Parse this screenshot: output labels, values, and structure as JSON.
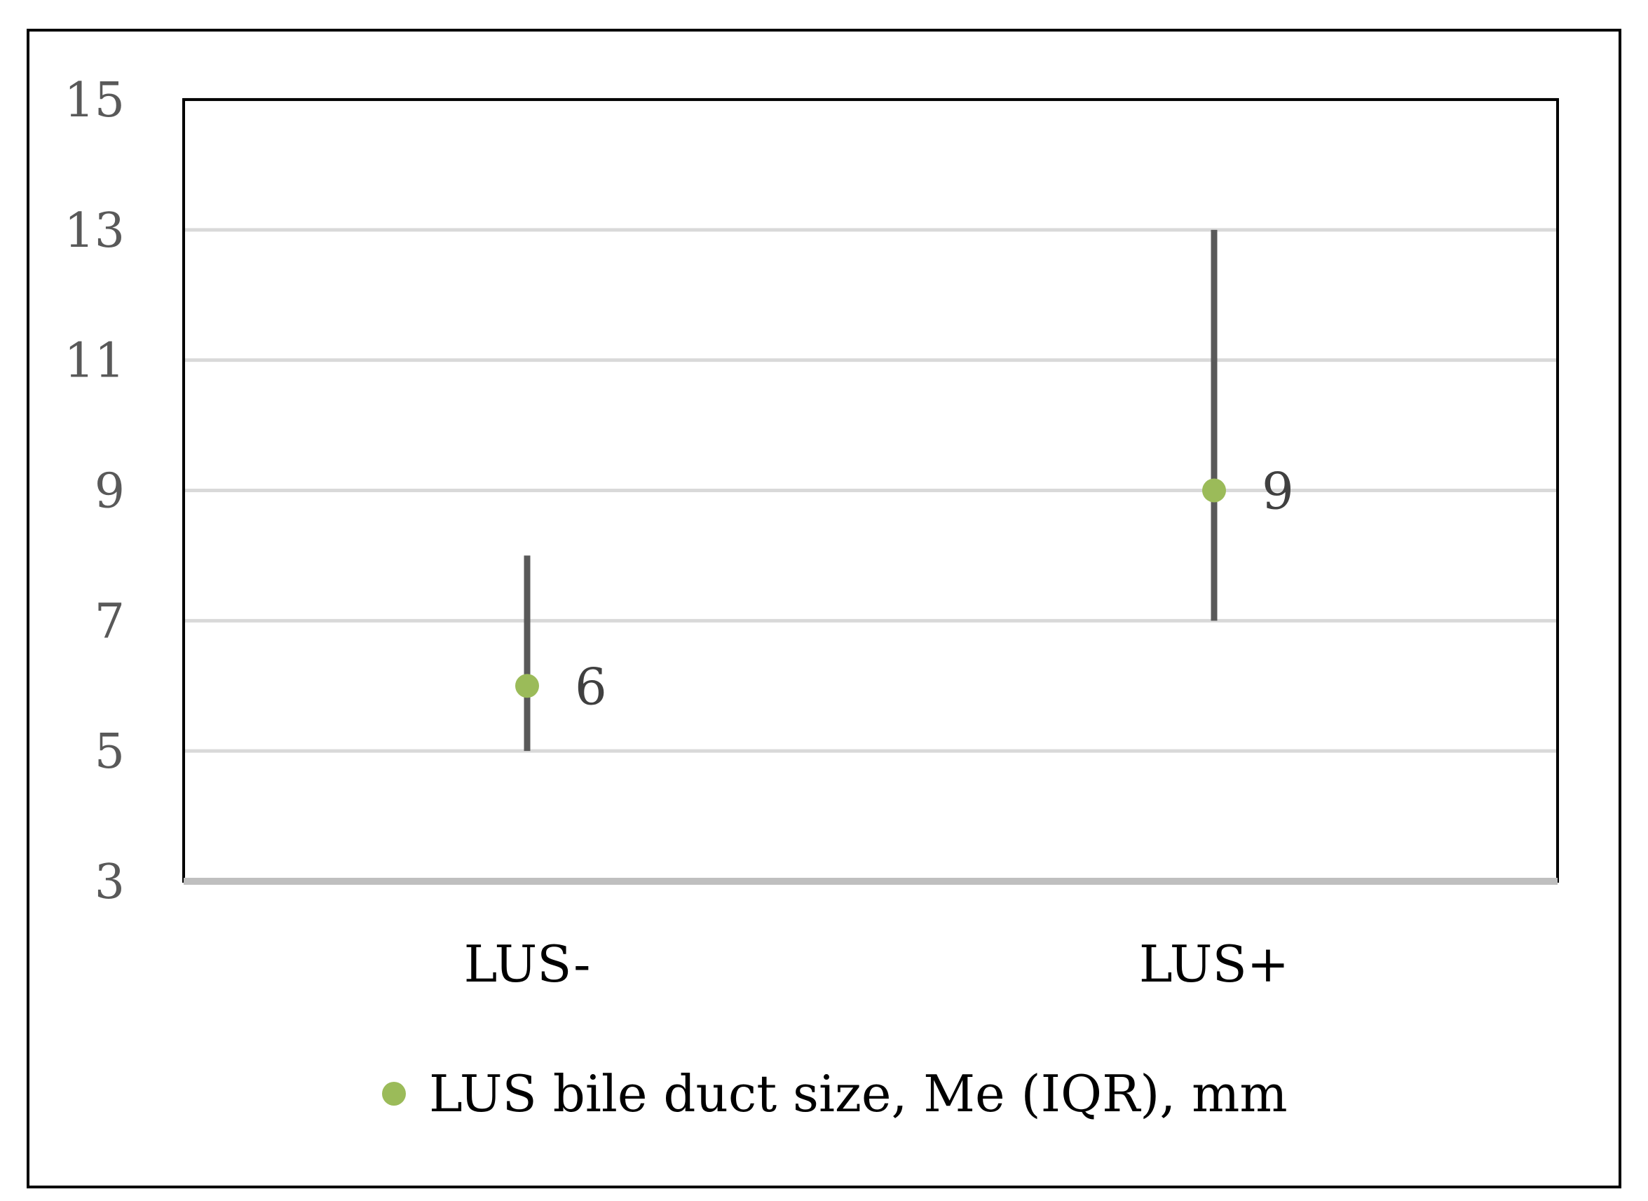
{
  "chart_data": {
    "type": "scatter",
    "categories": [
      "LUS-",
      "LUS+"
    ],
    "series": [
      {
        "name": "LUS bile duct size, Me (IQR), mm",
        "values": [
          6,
          9
        ],
        "error_low": [
          5,
          7
        ],
        "error_high": [
          8,
          13
        ],
        "data_labels": [
          "6",
          "9"
        ]
      }
    ],
    "ylim": [
      3,
      15
    ],
    "yticks": [
      3,
      5,
      7,
      9,
      11,
      13,
      15
    ],
    "grid": true,
    "legend_position": "bottom",
    "colors": {
      "marker": "#9BBB59",
      "error_bar": "#595959",
      "grid": "#D9D9D9",
      "axis_line": "#BFBFBF",
      "text": "#595959",
      "category_text": "#000000",
      "frame": "#000000"
    }
  }
}
